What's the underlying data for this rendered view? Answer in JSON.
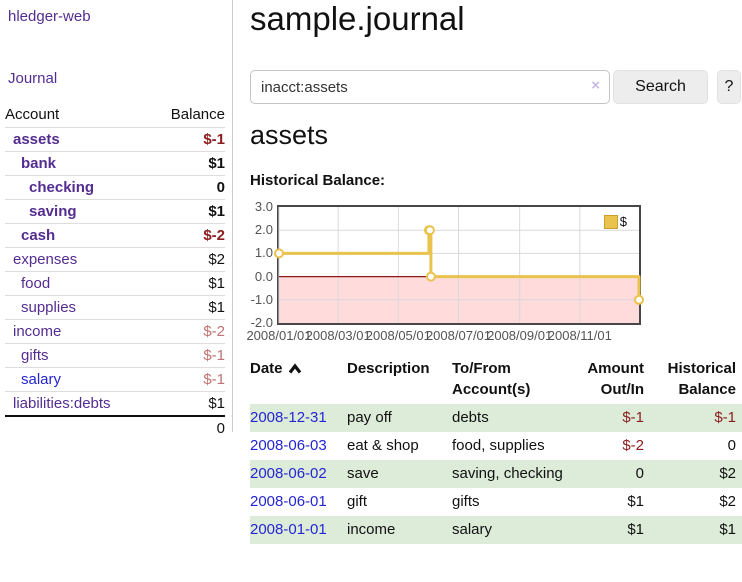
{
  "app": {
    "title": "hledger-web",
    "nav_journal": "Journal"
  },
  "sidebar": {
    "accounts_header": {
      "account": "Account",
      "balance": "Balance"
    },
    "accounts": [
      {
        "name": "assets",
        "depth": 1,
        "balance": "$-1",
        "bold": true,
        "balance_tone": "neg-strong"
      },
      {
        "name": "bank",
        "depth": 2,
        "balance": "$1",
        "bold": true,
        "balance_tone": "normal"
      },
      {
        "name": "checking",
        "depth": 3,
        "balance": "0",
        "bold": true,
        "balance_tone": "normal"
      },
      {
        "name": "saving",
        "depth": 3,
        "balance": "$1",
        "bold": true,
        "balance_tone": "normal"
      },
      {
        "name": "cash",
        "depth": 2,
        "balance": "$-2",
        "bold": true,
        "balance_tone": "neg-strong"
      },
      {
        "name": "expenses",
        "depth": 1,
        "balance": "$2",
        "bold": false,
        "balance_tone": "normal"
      },
      {
        "name": "food",
        "depth": 2,
        "balance": "$1",
        "bold": false,
        "balance_tone": "normal"
      },
      {
        "name": "supplies",
        "depth": 2,
        "balance": "$1",
        "bold": false,
        "balance_tone": "normal"
      },
      {
        "name": "income",
        "depth": 1,
        "balance": "$-2",
        "bold": false,
        "balance_tone": "neg-soft"
      },
      {
        "name": "gifts",
        "depth": 2,
        "balance": "$-1",
        "bold": false,
        "balance_tone": "neg-soft"
      },
      {
        "name": "salary",
        "depth": 2,
        "balance": "$-1",
        "bold": false,
        "balance_tone": "neg-soft",
        "link_style": "blue"
      },
      {
        "name": "liabilities:debts",
        "depth": 1,
        "balance": "$1",
        "bold": false,
        "balance_tone": "normal"
      }
    ],
    "total": "0"
  },
  "header": {
    "title": "sample.journal"
  },
  "search": {
    "value": "inacct:assets",
    "clear_icon": "×",
    "button_label": "Search",
    "help_label": "?"
  },
  "account_page": {
    "title": "assets",
    "chart_label": "Historical Balance:"
  },
  "chart_data": {
    "type": "line",
    "step": true,
    "title": "Historical Balance:",
    "legend": "$",
    "legend_position": "top-right",
    "series": [
      {
        "name": "$",
        "color": "#E9C34D",
        "points": [
          [
            "2008-01-01",
            1
          ],
          [
            "2008-06-01",
            2
          ],
          [
            "2008-06-02",
            2
          ],
          [
            "2008-06-03",
            0
          ],
          [
            "2008-12-31",
            -1
          ]
        ]
      }
    ],
    "xrange": [
      "2008-01-01",
      "2008-12-31"
    ],
    "ylim": [
      -2,
      3
    ],
    "yticks": [
      3,
      2,
      1,
      0,
      -1,
      -2
    ],
    "xtick_labels": [
      "2008/01/01",
      "2008/03/01",
      "2008/05/01",
      "2008/07/01",
      "2008/09/01",
      "2008/11/01"
    ],
    "grid": true,
    "negative_region_color": "#ffdbdb",
    "zero_line_color": "#8c1717",
    "grid_color": "#d9d9d9"
  },
  "register": {
    "columns": [
      {
        "label": "Date",
        "align": "left",
        "sorted": "ascending"
      },
      {
        "label": "Description",
        "align": "left"
      },
      {
        "label": "To/From Account(s)",
        "align": "left"
      },
      {
        "label": "Amount Out/In",
        "align": "right"
      },
      {
        "label": "Historical Balance",
        "align": "right"
      }
    ],
    "rows": [
      {
        "date": "2008-12-31",
        "description": "pay off",
        "accounts": "debts",
        "amount": "$-1",
        "balance": "$-1"
      },
      {
        "date": "2008-06-03",
        "description": "eat & shop",
        "accounts": "food, supplies",
        "amount": "$-2",
        "balance": "0"
      },
      {
        "date": "2008-06-02",
        "description": "save",
        "accounts": "saving, checking",
        "amount": "0",
        "balance": "$2"
      },
      {
        "date": "2008-06-01",
        "description": "gift",
        "accounts": "gifts",
        "amount": "$1",
        "balance": "$2"
      },
      {
        "date": "2008-01-01",
        "description": "income",
        "accounts": "salary",
        "amount": "$1",
        "balance": "$1"
      }
    ]
  },
  "colors": {
    "accent_purple": "#542d90",
    "link_blue": "#2525d2",
    "negative_strong": "#8b1d1d",
    "negative_soft": "#bf7272",
    "row_stripe_green": "#ddecd9",
    "chart_gold": "#E9C34D"
  }
}
